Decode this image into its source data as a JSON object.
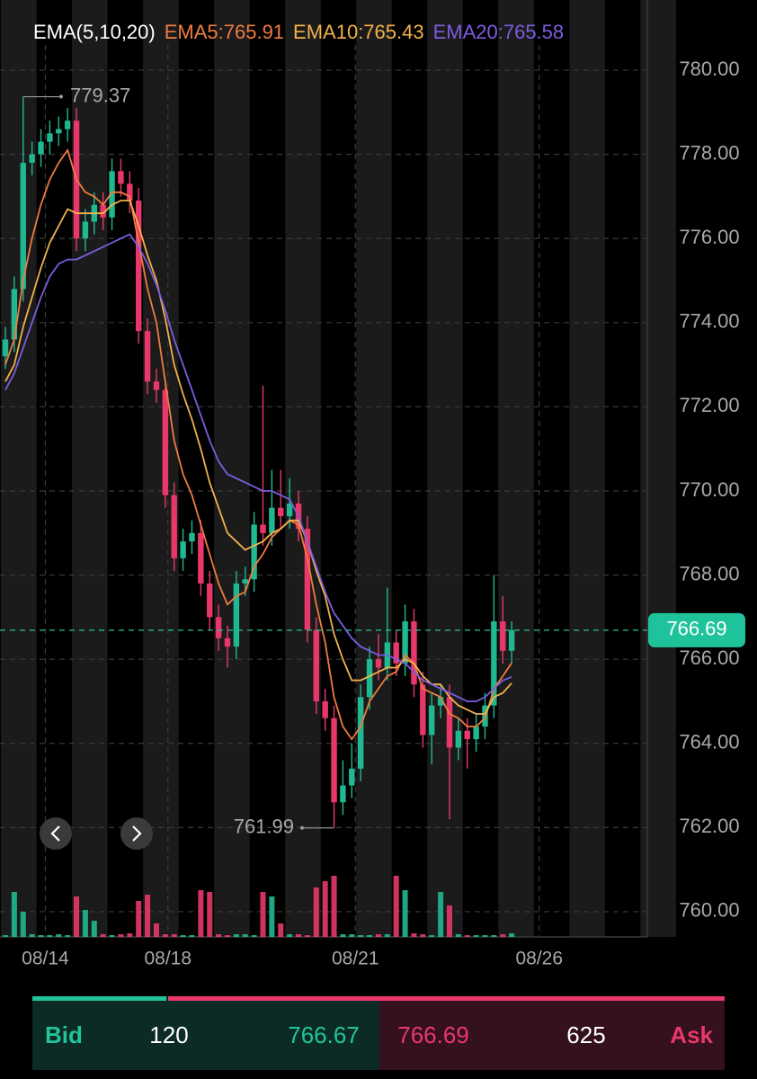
{
  "chart_data": {
    "type": "candlestick",
    "indicator": "EMA(5,10,20)",
    "up_color": "#1fb890",
    "down_color": "#e8386b",
    "grid": true,
    "ylim": [
      759.4,
      780.6
    ],
    "yticks": [
      {
        "value": 760,
        "label": "760.00"
      },
      {
        "value": 762,
        "label": "762.00"
      },
      {
        "value": 764,
        "label": "764.00"
      },
      {
        "value": 766,
        "label": "766.00"
      },
      {
        "value": 768,
        "label": "768.00"
      },
      {
        "value": 770,
        "label": "770.00"
      },
      {
        "value": 772,
        "label": "772.00"
      },
      {
        "value": 774,
        "label": "774.00"
      },
      {
        "value": 776,
        "label": "776.00"
      },
      {
        "value": 778,
        "label": "778.00"
      },
      {
        "value": 780,
        "label": "780.00"
      }
    ],
    "xlim": [
      -0.607,
      72.27
    ],
    "xticks": [
      {
        "value": 4.5,
        "label": "08/14"
      },
      {
        "value": 18.3,
        "label": "08/18"
      },
      {
        "value": 39.4,
        "label": "08/21"
      },
      {
        "value": 60.1,
        "label": "08/26"
      }
    ],
    "open": [
      773.2,
      773.6,
      774.8,
      777.8,
      778.0,
      778.3,
      778.5,
      778.6,
      778.8,
      776.0,
      776.4,
      776.8,
      776.5,
      777.6,
      777.3,
      776.9,
      773.8,
      772.6,
      772.4,
      769.9,
      768.4,
      768.8,
      769.0,
      767.8,
      767.0,
      766.5,
      766.3,
      767.8,
      767.9,
      769.2,
      769.0,
      769.6,
      769.4,
      769.7,
      769.1,
      766.7,
      765.0,
      764.6,
      762.6,
      763.0,
      763.4,
      765.1,
      766.0,
      765.8,
      766.4,
      765.9,
      766.9,
      765.4,
      764.2,
      764.9,
      765.1,
      763.9,
      764.3,
      764.1,
      764.4,
      764.9,
      766.9,
      766.2
    ],
    "high": [
      773.9,
      775.1,
      779.37,
      778.3,
      778.6,
      778.8,
      778.9,
      779.1,
      779.1,
      776.7,
      777.1,
      777.1,
      777.9,
      777.9,
      777.6,
      777.2,
      774.1,
      772.9,
      772.7,
      770.2,
      769.1,
      769.3,
      769.3,
      768.1,
      767.3,
      766.8,
      768.1,
      768.2,
      769.5,
      772.5,
      770.5,
      770.5,
      770.3,
      770.0,
      769.4,
      767.0,
      765.3,
      764.9,
      763.6,
      764.0,
      765.4,
      766.3,
      766.6,
      767.7,
      766.7,
      767.3,
      767.2,
      765.7,
      765.2,
      765.4,
      765.4,
      764.6,
      764.6,
      764.7,
      765.2,
      768.0,
      767.5,
      766.9
    ],
    "low": [
      772.9,
      773.3,
      774.5,
      777.5,
      777.7,
      778.0,
      778.2,
      778.3,
      775.7,
      775.7,
      776.1,
      776.2,
      776.2,
      777.0,
      776.6,
      773.5,
      772.3,
      772.1,
      769.6,
      768.1,
      768.1,
      768.5,
      767.5,
      766.7,
      766.2,
      765.8,
      766.0,
      767.5,
      767.6,
      768.7,
      768.7,
      769.1,
      769.1,
      768.8,
      766.4,
      764.7,
      764.3,
      761.99,
      762.3,
      762.7,
      763.1,
      764.8,
      765.5,
      765.5,
      765.6,
      765.6,
      765.1,
      763.9,
      763.5,
      764.6,
      762.2,
      763.6,
      763.4,
      763.8,
      764.1,
      764.6,
      765.9,
      765.9
    ],
    "close": [
      773.6,
      774.8,
      777.8,
      778.0,
      778.3,
      778.5,
      778.6,
      778.8,
      776.0,
      776.4,
      776.8,
      776.5,
      777.6,
      777.3,
      776.9,
      773.8,
      772.6,
      772.4,
      769.9,
      768.4,
      768.8,
      769.0,
      767.8,
      767.0,
      766.5,
      766.3,
      767.8,
      767.9,
      769.2,
      769.0,
      769.6,
      769.4,
      769.7,
      769.1,
      766.7,
      765.0,
      764.6,
      762.6,
      763.0,
      763.4,
      765.1,
      766.0,
      765.8,
      766.4,
      765.9,
      766.9,
      765.4,
      764.2,
      764.9,
      765.1,
      763.9,
      764.3,
      764.1,
      764.4,
      764.9,
      766.9,
      766.2,
      766.69
    ],
    "volume": [
      2,
      50,
      28,
      3,
      2,
      2,
      3,
      2,
      45,
      30,
      18,
      3,
      2,
      3,
      4,
      40,
      47,
      15,
      3,
      3,
      2,
      2,
      52,
      50,
      3,
      2,
      3,
      3,
      2,
      50,
      45,
      15,
      3,
      3,
      2,
      55,
      62,
      68,
      3,
      3,
      2,
      2,
      3,
      3,
      68,
      52,
      4,
      3,
      2,
      50,
      35,
      3,
      2,
      2,
      2,
      2,
      3,
      4
    ],
    "series": [
      {
        "name": "EMA5:765.91",
        "color": "#f07b3f",
        "values": [
          773.0,
          773.6,
          775.0,
          776.0,
          776.8,
          777.4,
          777.8,
          778.1,
          777.4,
          777.1,
          777.0,
          776.8,
          777.1,
          777.1,
          777.0,
          775.9,
          774.8,
          774.0,
          772.6,
          771.2,
          770.4,
          769.9,
          769.2,
          768.5,
          767.8,
          767.3,
          767.5,
          767.6,
          768.2,
          768.5,
          768.9,
          769.1,
          769.3,
          769.2,
          768.4,
          767.3,
          766.4,
          765.1,
          764.4,
          764.1,
          764.4,
          765.0,
          765.3,
          765.6,
          765.7,
          766.1,
          765.9,
          765.3,
          765.2,
          765.1,
          764.7,
          764.6,
          764.4,
          764.4,
          764.6,
          765.3,
          765.6,
          765.91
        ]
      },
      {
        "name": "EMA10:765.43",
        "color": "#f2b14c",
        "values": [
          772.6,
          773.0,
          773.9,
          774.6,
          775.3,
          775.9,
          776.3,
          776.7,
          776.6,
          776.6,
          776.6,
          776.6,
          776.8,
          776.9,
          776.9,
          776.3,
          775.6,
          775.0,
          774.1,
          773.0,
          772.3,
          771.7,
          771.0,
          770.2,
          769.6,
          769.0,
          768.8,
          768.6,
          768.7,
          768.8,
          769.0,
          769.1,
          769.3,
          769.3,
          768.8,
          768.1,
          767.5,
          766.6,
          766.0,
          765.5,
          765.5,
          765.6,
          765.7,
          765.8,
          765.8,
          766.0,
          765.9,
          765.6,
          765.4,
          765.4,
          765.1,
          764.9,
          764.8,
          764.7,
          764.7,
          765.1,
          765.2,
          765.43
        ]
      },
      {
        "name": "EMA20:765.58",
        "color": "#7b5ce0",
        "values": [
          772.4,
          772.8,
          773.4,
          774.0,
          774.6,
          775.1,
          775.4,
          775.5,
          775.5,
          775.6,
          775.7,
          775.8,
          775.9,
          776.0,
          776.1,
          775.8,
          775.4,
          774.9,
          774.3,
          773.6,
          773.0,
          772.4,
          771.8,
          771.2,
          770.7,
          770.4,
          770.3,
          770.2,
          770.1,
          770.0,
          770.0,
          769.9,
          769.8,
          769.4,
          768.8,
          768.2,
          767.6,
          767.1,
          766.8,
          766.5,
          766.3,
          766.2,
          766.1,
          766.1,
          766.0,
          765.9,
          765.7,
          765.5,
          765.4,
          765.3,
          765.2,
          765.1,
          765.0,
          765.0,
          765.1,
          765.3,
          765.5,
          765.58
        ]
      }
    ]
  },
  "quote": {
    "bid": {
      "label": "Bid",
      "size": 120,
      "price": 766.67
    },
    "ask": {
      "price": 766.69,
      "size": 625,
      "label": "Ask"
    }
  }
}
